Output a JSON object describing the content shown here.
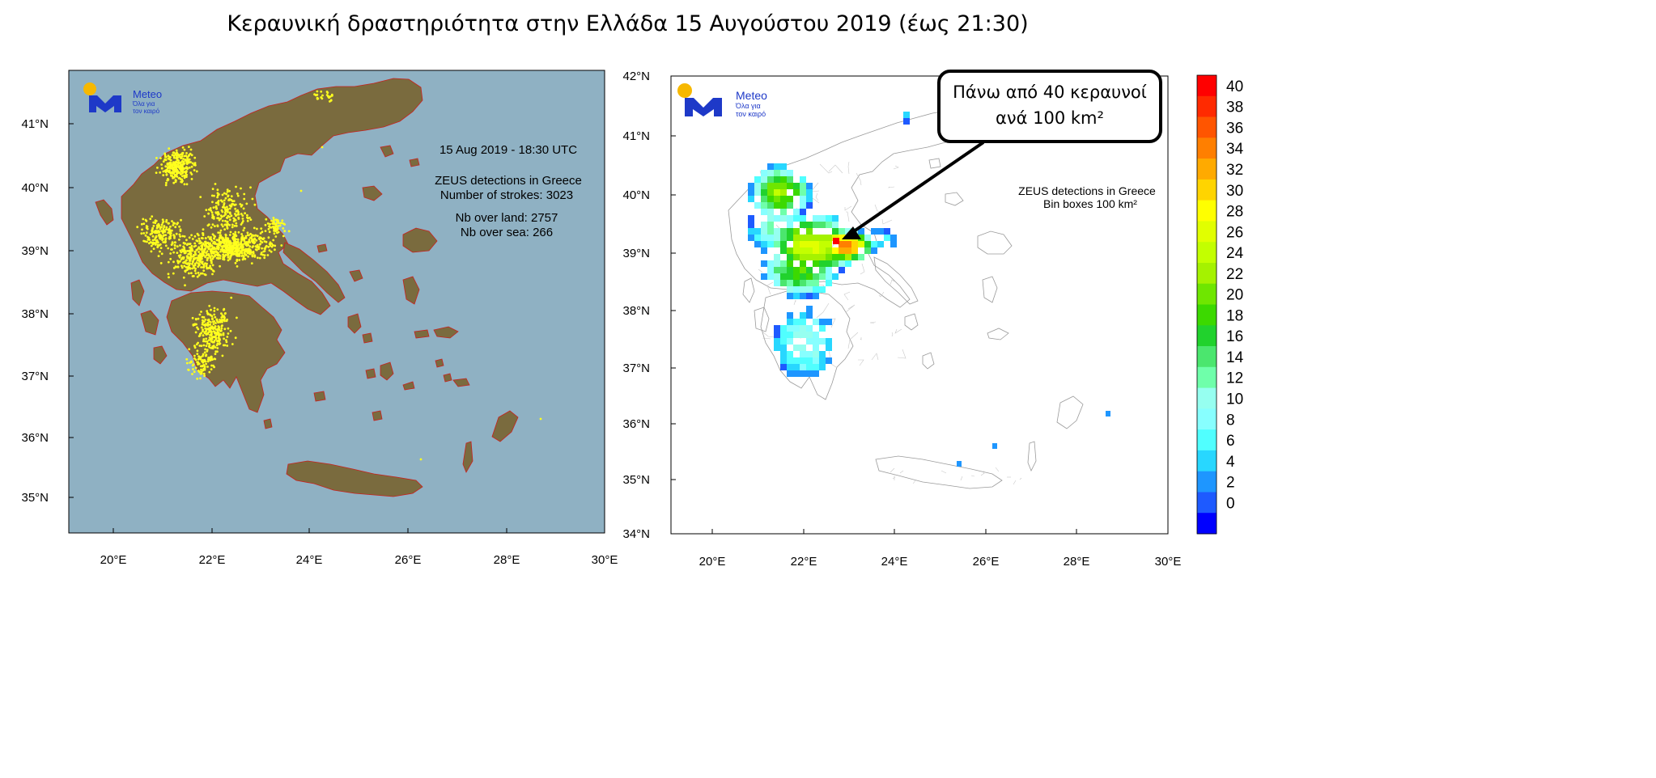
{
  "title": "Κεραυνική δραστηριότητα στην Ελλάδα 15 Αυγούστου 2019 (έως 21:30)",
  "colors": {
    "sea": "#8fb1c3",
    "land": "#7a6b3e",
    "strike": "#ffff1e",
    "border": "#c8201e"
  },
  "left_panel": {
    "logo": {
      "name": "Meteo",
      "tagline_1": "Όλα για",
      "tagline_2": "τον καιρό"
    },
    "datetime": "15  Aug 2019 - 18:30 UTC",
    "detections": "ZEUS detections in Greece",
    "strokes": "Number of strokes: 3023",
    "land": "Nb over land: 2757",
    "sea": "Nb over sea: 266",
    "lat_labels": [
      "41°N",
      "40°N",
      "39°N",
      "38°N",
      "37°N",
      "36°N",
      "35°N"
    ],
    "lon_labels": [
      "20°E",
      "22°E",
      "24°E",
      "26°E",
      "28°E",
      "30°E"
    ]
  },
  "right_panel": {
    "logo": {
      "name": "Meteo",
      "tagline_1": "Όλα για",
      "tagline_2": "τον καιρό"
    },
    "callout_line1": "Πάνω από 40 κεραυνοί",
    "callout_line2": "ανά 100 km²",
    "detections": "ZEUS detections in Greece",
    "bin_boxes": "Bin boxes 100 km²",
    "lat_labels": [
      "42°N",
      "41°N",
      "40°N",
      "39°N",
      "38°N",
      "37°N",
      "36°N",
      "35°N",
      "34°N"
    ],
    "lon_labels": [
      "20°E",
      "22°E",
      "24°E",
      "26°E",
      "28°E",
      "30°E"
    ]
  },
  "colorbar": {
    "ticks": [
      "40",
      "38",
      "36",
      "34",
      "32",
      "30",
      "28",
      "26",
      "24",
      "22",
      "20",
      "18",
      "16",
      "14",
      "12",
      "10",
      "8",
      "6",
      "4",
      "2",
      "0"
    ],
    "colors": [
      "#ff0000",
      "#ff2a00",
      "#ff5500",
      "#ff7f00",
      "#ffaa00",
      "#ffd400",
      "#ffff00",
      "#e1ff00",
      "#c3ff00",
      "#a5f200",
      "#6fe600",
      "#3cd900",
      "#21d22d",
      "#4be66e",
      "#6fffaa",
      "#96fff0",
      "#87ffff",
      "#50ffff",
      "#28d7ff",
      "#1e96ff",
      "#1e5aff",
      "#0000ff"
    ]
  }
}
